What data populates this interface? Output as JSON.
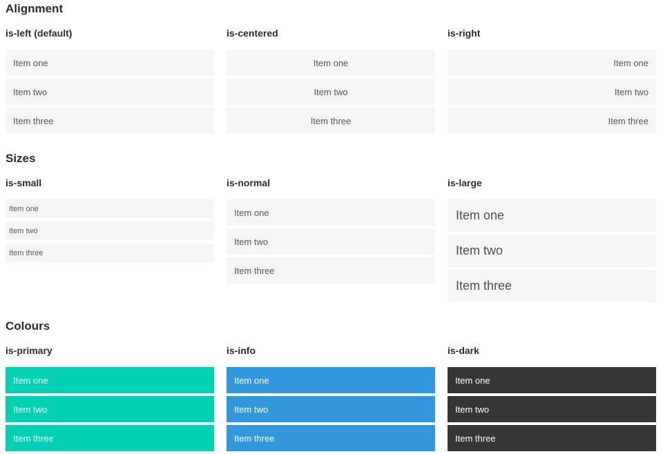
{
  "colors": {
    "primary": "#00d1b2",
    "info": "#3298dc",
    "dark": "#363636",
    "item_bg": "#f5f5f5",
    "item_text": "#585858",
    "heading_text": "#2b2b2b",
    "colored_item_text": "#ffffff"
  },
  "sections": [
    {
      "title": "Alignment",
      "columns": [
        {
          "heading": "is-left (default)",
          "variant": "left",
          "items": [
            "Item one",
            "Item two",
            "Item three"
          ]
        },
        {
          "heading": "is-centered",
          "variant": "centered",
          "items": [
            "Item one",
            "Item two",
            "Item three"
          ]
        },
        {
          "heading": "is-right",
          "variant": "right",
          "items": [
            "Item one",
            "Item two",
            "Item three"
          ]
        }
      ]
    },
    {
      "title": "Sizes",
      "columns": [
        {
          "heading": "is-small",
          "variant": "small",
          "items": [
            "Item one",
            "Item two",
            "Item three"
          ]
        },
        {
          "heading": "is-normal",
          "variant": "normal",
          "items": [
            "Item one",
            "Item two",
            "Item three"
          ]
        },
        {
          "heading": "is-large",
          "variant": "large",
          "items": [
            "Item one",
            "Item two",
            "Item three"
          ]
        }
      ]
    },
    {
      "title": "Colours",
      "columns": [
        {
          "heading": "is-primary",
          "variant": "primary",
          "items": [
            "Item one",
            "Item two",
            "Item three"
          ]
        },
        {
          "heading": "is-info",
          "variant": "info",
          "items": [
            "Item one",
            "Item two",
            "Item three"
          ]
        },
        {
          "heading": "is-dark",
          "variant": "dark",
          "items": [
            "Item one",
            "Item two",
            "Item three"
          ]
        }
      ]
    }
  ]
}
